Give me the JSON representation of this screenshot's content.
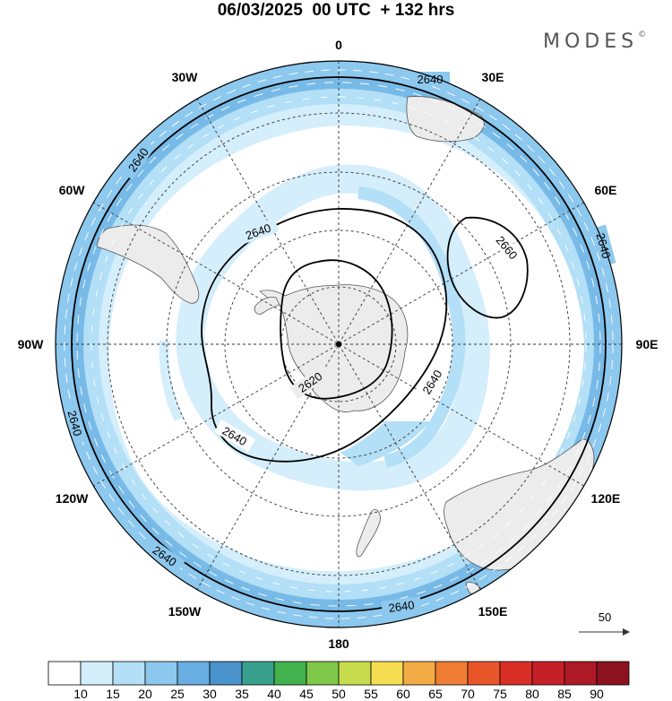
{
  "title": "06/03/2025  00 UTC  + 132 hrs",
  "brand": {
    "name": "MODES",
    "mark": "©"
  },
  "map": {
    "projection": "south-polar-stereographic",
    "longitude_labels": [
      {
        "text": "0",
        "lon": 0
      },
      {
        "text": "30E",
        "lon": 30
      },
      {
        "text": "60E",
        "lon": 60
      },
      {
        "text": "90E",
        "lon": 90
      },
      {
        "text": "120E",
        "lon": 120
      },
      {
        "text": "150E",
        "lon": 150
      },
      {
        "text": "180",
        "lon": 180
      },
      {
        "text": "150W",
        "lon": -150
      },
      {
        "text": "120W",
        "lon": -120
      },
      {
        "text": "90W",
        "lon": -90
      },
      {
        "text": "60W",
        "lon": -60
      },
      {
        "text": "30W",
        "lon": -30
      }
    ],
    "contour_labels": [
      "2640",
      "2640",
      "2640",
      "2640",
      "2640",
      "2640",
      "2640",
      "2640",
      "2640",
      "2660",
      "2620"
    ],
    "vector_reference": "50"
  },
  "colorbar": {
    "ticks": [
      "10",
      "15",
      "20",
      "25",
      "30",
      "35",
      "40",
      "45",
      "50",
      "55",
      "60",
      "65",
      "70",
      "75",
      "80",
      "85",
      "90"
    ],
    "colors": [
      "#ffffff",
      "#d4eefb",
      "#b3dff7",
      "#8dc8ee",
      "#68aee2",
      "#4a92cc",
      "#3aa08e",
      "#41b24e",
      "#7fc84a",
      "#c7dc4d",
      "#f5de52",
      "#f3ab45",
      "#ef7d34",
      "#e9562a",
      "#d92f27",
      "#c51f27",
      "#ad1a25",
      "#8c1220"
    ]
  },
  "colors": {
    "land": "#ececec",
    "coast": "#555555",
    "grid": "#333333",
    "shade_light": "#d4eefb",
    "shade_mid": "#b3dff7",
    "shade_dark": "#8dc8ee",
    "shade_darker": "#68aee2"
  }
}
